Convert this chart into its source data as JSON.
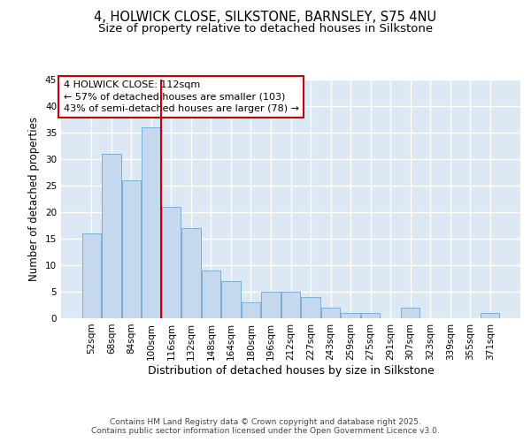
{
  "title_line1": "4, HOLWICK CLOSE, SILKSTONE, BARNSLEY, S75 4NU",
  "title_line2": "Size of property relative to detached houses in Silkstone",
  "xlabel": "Distribution of detached houses by size in Silkstone",
  "ylabel": "Number of detached properties",
  "categories": [
    "52sqm",
    "68sqm",
    "84sqm",
    "100sqm",
    "116sqm",
    "132sqm",
    "148sqm",
    "164sqm",
    "180sqm",
    "196sqm",
    "212sqm",
    "227sqm",
    "243sqm",
    "259sqm",
    "275sqm",
    "291sqm",
    "307sqm",
    "323sqm",
    "339sqm",
    "355sqm",
    "371sqm"
  ],
  "values": [
    16,
    31,
    26,
    36,
    21,
    17,
    9,
    7,
    3,
    5,
    5,
    4,
    2,
    1,
    1,
    0,
    2,
    0,
    0,
    0,
    1
  ],
  "bar_color": "#c5d8ed",
  "bar_edge_color": "#7bafd4",
  "vline_x_index": 4,
  "vline_color": "#cc0000",
  "annotation_text": "4 HOLWICK CLOSE: 112sqm\n← 57% of detached houses are smaller (103)\n43% of semi-detached houses are larger (78) →",
  "annotation_box_color": "#ffffff",
  "annotation_box_edge_color": "#cc0000",
  "ylim": [
    0,
    45
  ],
  "yticks": [
    0,
    5,
    10,
    15,
    20,
    25,
    30,
    35,
    40,
    45
  ],
  "bg_color": "#dce9f5",
  "footer_text": "Contains HM Land Registry data © Crown copyright and database right 2025.\nContains public sector information licensed under the Open Government Licence v3.0.",
  "title_fontsize": 10.5,
  "subtitle_fontsize": 9.5,
  "tick_fontsize": 7.5,
  "xlabel_fontsize": 9,
  "ylabel_fontsize": 8.5,
  "annotation_fontsize": 8,
  "footer_fontsize": 6.5
}
